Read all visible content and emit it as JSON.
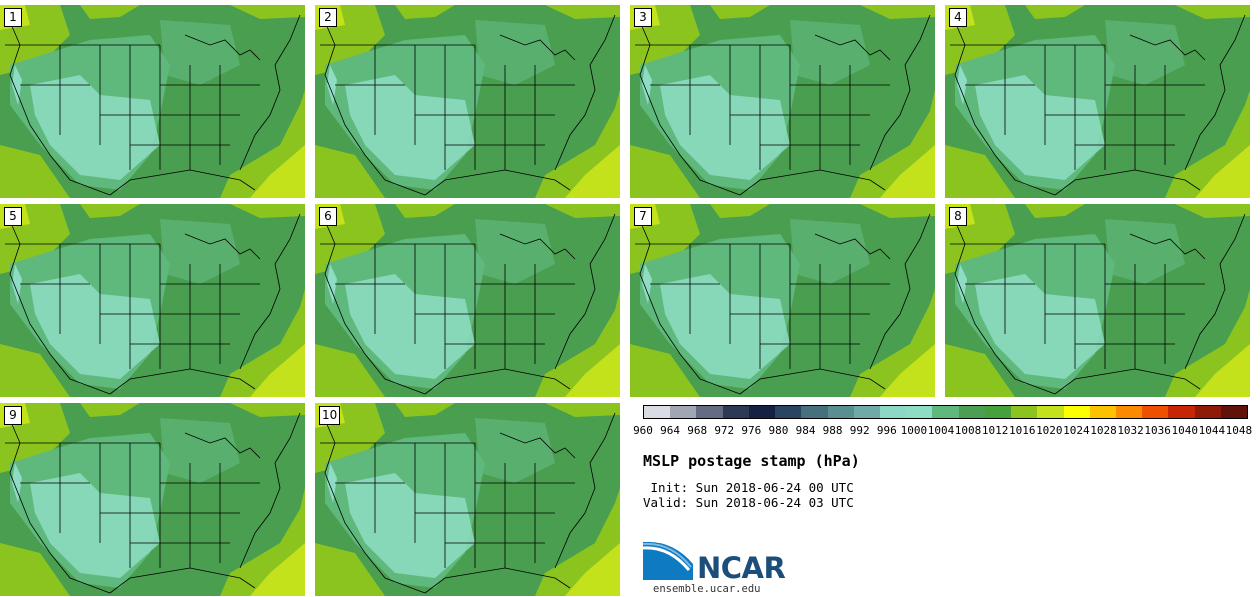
{
  "panels": [
    {
      "label": "1"
    },
    {
      "label": "2"
    },
    {
      "label": "3"
    },
    {
      "label": "4"
    },
    {
      "label": "5"
    },
    {
      "label": "6"
    },
    {
      "label": "7"
    },
    {
      "label": "8"
    },
    {
      "label": "9"
    },
    {
      "label": "10"
    }
  ],
  "legend": {
    "ticks": [
      "960",
      "964",
      "968",
      "972",
      "976",
      "980",
      "984",
      "988",
      "992",
      "996",
      "1000",
      "1004",
      "1008",
      "1012",
      "1016",
      "1020",
      "1024",
      "1028",
      "1032",
      "1036",
      "1040",
      "1044",
      "1048"
    ],
    "colors": [
      "#d9dde3",
      "#a0a6b3",
      "#646b82",
      "#2d3a55",
      "#142142",
      "#2a4464",
      "#47707f",
      "#5a8f91",
      "#70aaa8",
      "#8dd7c6",
      "#8edcc4",
      "#5fb87c",
      "#4c9f52",
      "#46a03c",
      "#8cc41f",
      "#c3e21b",
      "#fbff00",
      "#fbc200",
      "#fb8a00",
      "#ef5000",
      "#c72604",
      "#8f1a08",
      "#611309"
    ]
  },
  "title": "MSLP postage stamp (hPa)",
  "init": " Init: Sun 2018-06-24 00 UTC",
  "valid": "Valid: Sun 2018-06-24 03 UTC",
  "logo": {
    "text": "NCAR",
    "url": "ensemble.ucar.edu"
  },
  "map_colors": {
    "ocean_green": "#4a9e4f",
    "light": "#5fb87c",
    "pale": "#8edcc4",
    "yellow_green": "#8cc41f",
    "lime": "#c3e21b"
  }
}
